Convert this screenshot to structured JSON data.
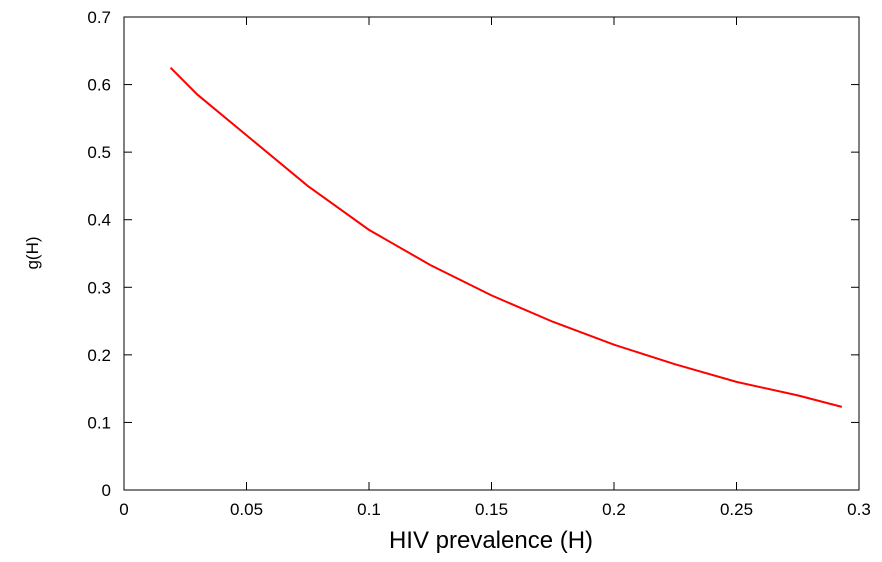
{
  "chart_data": {
    "type": "line",
    "x_label": "HIV prevalence (H)",
    "y_label": "g(H)",
    "x": [
      0.019,
      0.03,
      0.05,
      0.075,
      0.1,
      0.125,
      0.15,
      0.175,
      0.2,
      0.225,
      0.25,
      0.275,
      0.293
    ],
    "series": [
      {
        "color": "#ff0000",
        "values": [
          0.625,
          0.585,
          0.525,
          0.45,
          0.385,
          0.333,
          0.288,
          0.249,
          0.215,
          0.186,
          0.16,
          0.14,
          0.123
        ]
      }
    ],
    "xlim": [
      0,
      0.3
    ],
    "ylim": [
      0,
      0.7
    ],
    "xticks": [
      0,
      0.05,
      0.1,
      0.15,
      0.2,
      0.25,
      0.3
    ],
    "yticks": [
      0,
      0.1,
      0.2,
      0.3,
      0.4,
      0.5,
      0.6,
      0.7
    ],
    "grid": false
  }
}
